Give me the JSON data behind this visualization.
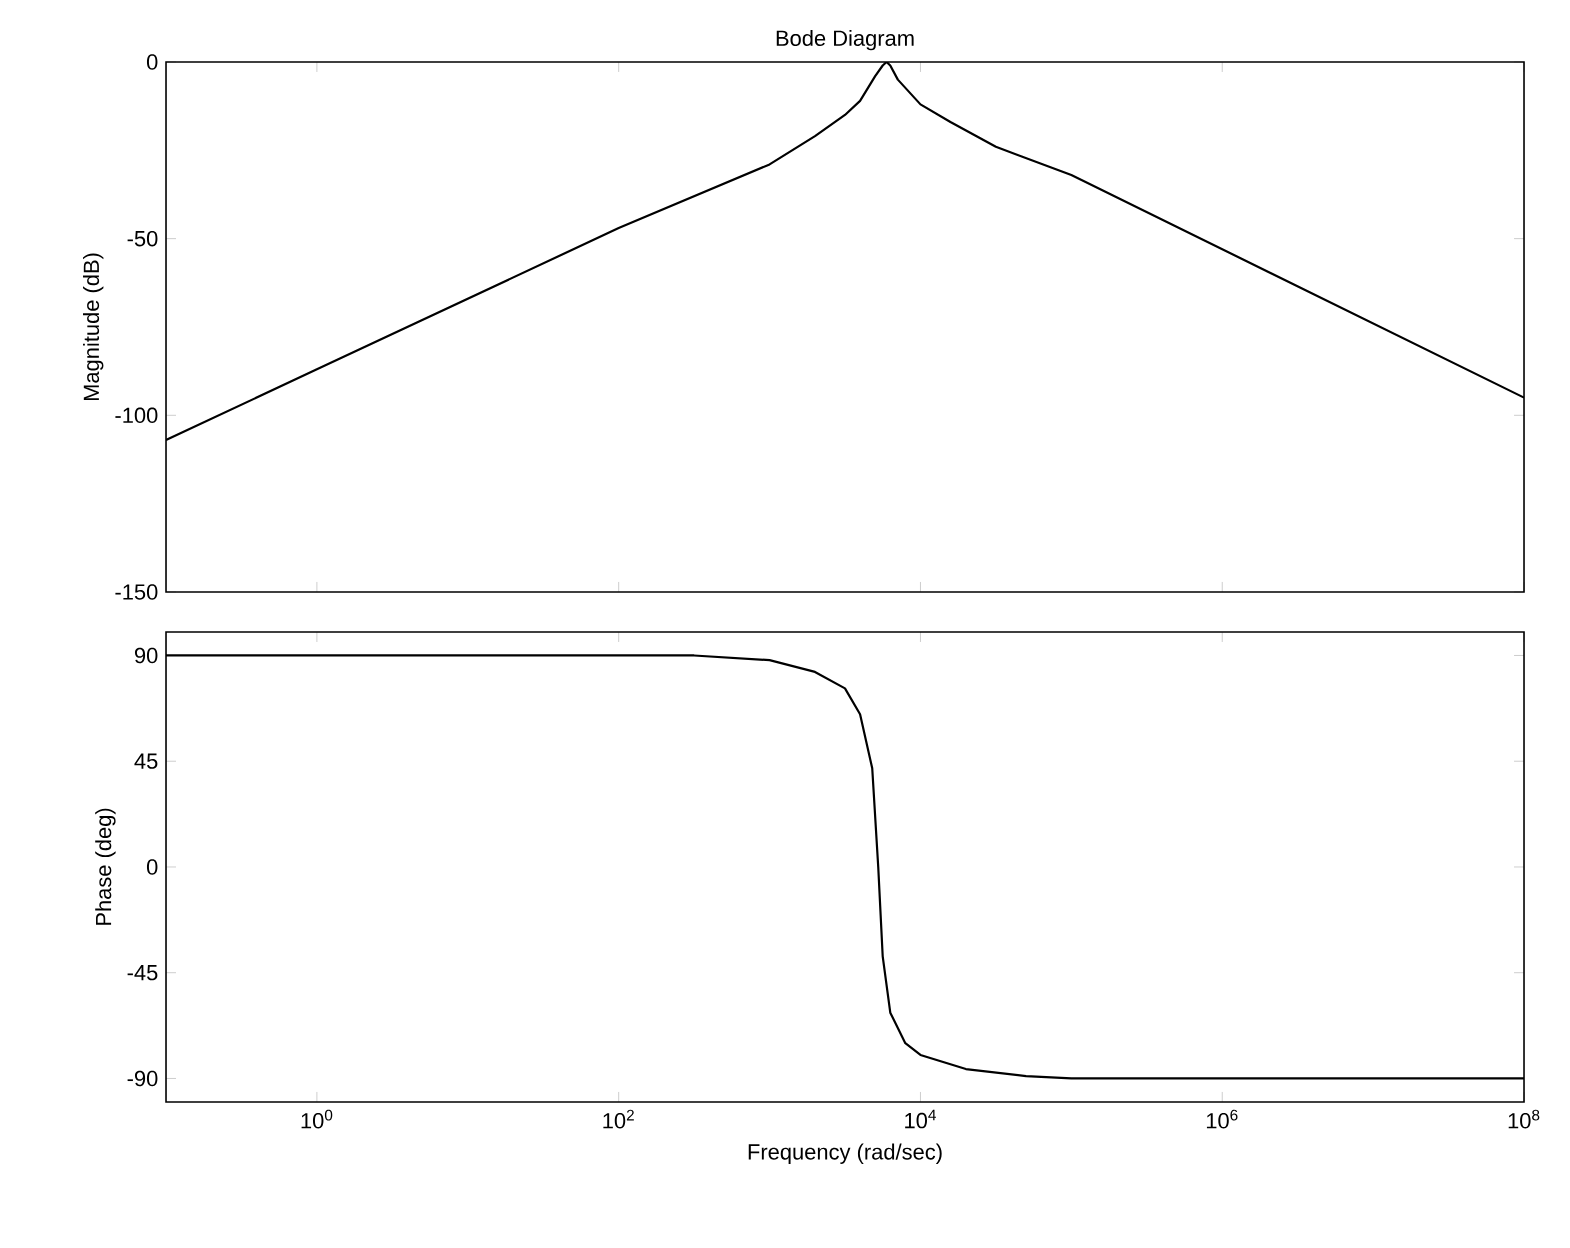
{
  "chart_data": [
    {
      "type": "line",
      "title": "Bode Diagram",
      "ylabel": "Magnitude (dB)",
      "log": "x",
      "grid": false,
      "tick_labels": "y",
      "xlim": [
        0.1,
        100000000
      ],
      "xticks": [
        {
          "value": 1,
          "label": null
        },
        {
          "value": 100,
          "label": null
        },
        {
          "value": 10000,
          "label": null
        },
        {
          "value": 1000000,
          "label": null
        },
        {
          "value": 100000000,
          "label": null
        }
      ],
      "ylim": [
        -150,
        0
      ],
      "yticks": [
        -150,
        -100,
        -50,
        0
      ],
      "series": [
        {
          "color": "#000000",
          "x": [
            0.1,
            1,
            10,
            100,
            1000,
            2000,
            3160,
            3980,
            5010,
            5620,
            5960,
            6310,
            7080,
            10000,
            15800,
            31600,
            100000,
            1000000,
            10000000,
            100000000
          ],
          "values": [
            -107,
            -87,
            -67,
            -47,
            -29,
            -21,
            -15,
            -11,
            -4,
            -1,
            0,
            -1,
            -5,
            -12,
            -17,
            -24,
            -32,
            -53,
            -74,
            -95
          ]
        }
      ]
    },
    {
      "type": "line",
      "ylabel": "Phase (deg)",
      "xlabel": "Frequency (rad/sec)",
      "log": "x",
      "grid": false,
      "xlim": [
        0.1,
        100000000
      ],
      "xticks": [
        {
          "value": 1,
          "label": "10$^{0}$"
        },
        {
          "value": 100,
          "label": "10$^{2}$"
        },
        {
          "value": 10000,
          "label": "10$^{4}$"
        },
        {
          "value": 1000000,
          "label": "10$^{6}$"
        },
        {
          "value": 100000000,
          "label": "10$^{8}$"
        }
      ],
      "ylim": [
        -100,
        100
      ],
      "yticks": [
        -90,
        -45,
        0,
        45,
        90
      ],
      "series": [
        {
          "color": "#000000",
          "x": [
            0.1,
            10,
            316,
            1000,
            2000,
            3160,
            3980,
            4790,
            5250,
            5620,
            6310,
            7940,
            10000,
            20000,
            50100,
            100000,
            100000000
          ],
          "values": [
            90,
            90,
            90,
            88,
            83,
            76,
            65,
            42,
            0,
            -38,
            -62,
            -75,
            -80,
            -86,
            -89,
            -90,
            -90
          ]
        }
      ]
    }
  ]
}
